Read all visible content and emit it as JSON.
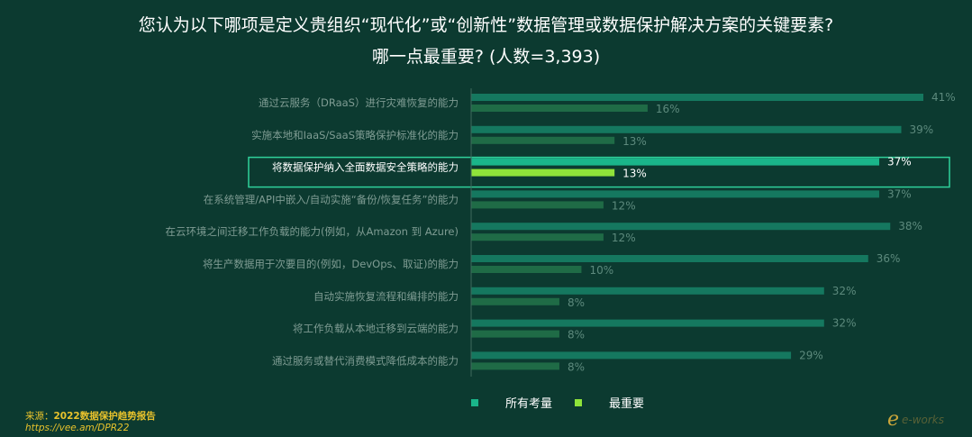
{
  "title_line1": "您认为以下哪项是定义贵组织“现代化”或“创新性”数据管理或数据保护解决方案的关键要素?",
  "title_line2": "哪一点最重要? (人数=3,393)",
  "colors": {
    "background": "#0c3a30",
    "all_bar": "#1ab58a",
    "all_bar_dim": "#15785f",
    "top_bar": "#8fe33a",
    "top_bar_dim": "#1f6b46",
    "highlight_border": "#2fd19b"
  },
  "legend": {
    "all_label": "所有考量",
    "top_label": "最重要"
  },
  "source": {
    "label": "来源：",
    "name": "2022数据保护趋势报告",
    "url": "https://vee.am/DPR22"
  },
  "logo_text": "e-works",
  "chart_data": {
    "type": "bar",
    "orientation": "horizontal",
    "categories": [
      "通过云服务（DRaaS）进行灾难恢复的能力",
      "实施本地和IaaS/SaaS策略保护标准化的能力",
      "将数据保护纳入全面数据安全策略的能力",
      "在系统管理/API中嵌入/自动实施“备份/恢复任务”的能力",
      "在云环境之间迁移工作负载的能力(例如，从Amazon 到 Azure)",
      "将生产数据用于次要目的(例如，DevOps、取证)的能力",
      "自动实施恢复流程和编排的能力",
      "将工作负载从本地迁移到云端的能力",
      "通过服务或替代消费模式降低成本的能力"
    ],
    "series": [
      {
        "name": "所有考量",
        "values": [
          41,
          39,
          37,
          37,
          38,
          36,
          32,
          32,
          29
        ]
      },
      {
        "name": "最重要",
        "values": [
          16,
          13,
          13,
          12,
          12,
          10,
          8,
          8,
          8
        ]
      }
    ],
    "value_labels": {
      "all": [
        "41%",
        "39%",
        "37%",
        "37%",
        "38%",
        "36%",
        "32%",
        "32%",
        "29%"
      ],
      "top": [
        "16%",
        "13%",
        "13%",
        "12%",
        "12%",
        "10%",
        "8%",
        "8%",
        "8%"
      ]
    },
    "highlighted_index": 2,
    "xlim": [
      0,
      41
    ]
  }
}
